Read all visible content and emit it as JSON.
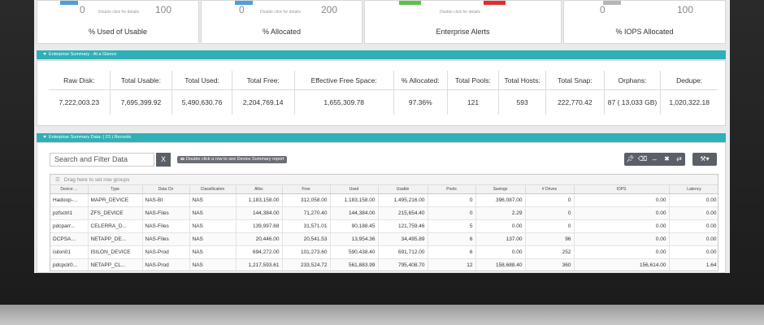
{
  "gauges": [
    {
      "title": "% Used of Usable",
      "min": "0",
      "max": "100",
      "hint": "Double click for details",
      "color": "#4c9fd8"
    },
    {
      "title": "% Allocated",
      "min": "0",
      "max": "200",
      "hint": "Double click for details",
      "color": "#4c9fd8"
    },
    {
      "title": "Enterprise Alerts",
      "hint": "Double click for details",
      "colors": [
        "#5cc24a",
        "#e22d2d"
      ]
    },
    {
      "title": "% IOPS Allocated",
      "min": "0",
      "max": "100",
      "color": "#b5b5b5"
    }
  ],
  "glance_section": {
    "title": "Enterprise Summary - At a Glance",
    "columns": [
      {
        "label": "Raw Disk:",
        "value": "7,222,003.23"
      },
      {
        "label": "Total Usable:",
        "value": "7,695,399.92"
      },
      {
        "label": "Total Used:",
        "value": "5,490,630.76"
      },
      {
        "label": "Total Free:",
        "value": "2,204,769.14"
      },
      {
        "label": "Effective Free Space:",
        "value": "1,655,309.78"
      },
      {
        "label": "% Allocated:",
        "value": "97.36%"
      },
      {
        "label": "Total Pools:",
        "value": "121"
      },
      {
        "label": "Total Hosts:",
        "value": "593"
      },
      {
        "label": "Total Snap:",
        "value": "222,770.42"
      },
      {
        "label": "Orphans:",
        "value": "87 ( 13,033 GB)"
      },
      {
        "label": "Dedupe:",
        "value": "1,020,322.18"
      }
    ]
  },
  "data_section": {
    "title": "Enterprise Summary Data: ( 23 ) Records",
    "search_placeholder": "Search and Filter Data",
    "clear_label": "X",
    "dblclick_hint": "Double click a row to see Device Summary report",
    "group_hint": "Drag here to set row groups",
    "columns": [
      "Device ...",
      "Type",
      "Data Ctr",
      "Classification",
      "Alloc",
      "Free",
      "Used",
      "Usable",
      "Pools",
      "Savings",
      "# Drives",
      "IOPS",
      "Latency"
    ],
    "rows": [
      [
        "Hadoop-...",
        "MAPR_DEVICE",
        "NAS-BI",
        "NAS",
        "1,183,158.00",
        "312,058.00",
        "1,183,158.00",
        "1,495,216.00",
        "0",
        "396,087.00",
        "0",
        "0.00",
        "0.00"
      ],
      [
        "pzfsctrl1",
        "ZFS_DEVICE",
        "NAS-Files",
        "NAS",
        "144,384.00",
        "71,270.40",
        "144,384.00",
        "215,654.40",
        "0",
        "2.29",
        "0",
        "0.00",
        "0.00"
      ],
      [
        "pdcparr...",
        "CELERRA_D...",
        "NAS-Files",
        "NAS",
        "139,997.68",
        "31,571.01",
        "90,188.45",
        "121,759.46",
        "5",
        "0.00",
        "0",
        "0.00",
        "0.00"
      ],
      [
        "DCPSA...",
        "NETAPP_DE...",
        "NAS-Files",
        "NAS",
        "20,446.00",
        "20,541.53",
        "13,954.36",
        "34,495.89",
        "6",
        "137.00",
        "96",
        "0.00",
        "0.00"
      ],
      [
        "isilon01",
        "ISILON_DEVICE",
        "NAS-Prod",
        "NAS",
        "694,272.00",
        "101,273.60",
        "590,438.40",
        "691,712.00",
        "6",
        "0.00",
        "252",
        "0.00",
        "0.00"
      ],
      [
        "pdcpclr0...",
        "NETAPP_CL...",
        "NAS-Prod",
        "NAS",
        "1,217,593.61",
        "233,524.72",
        "561,883.99",
        "795,408.70",
        "12",
        "158,688.40",
        "360",
        "156,614.00",
        "1.64"
      ]
    ]
  },
  "toolbar_icons": [
    "pin-icon",
    "eraser-icon",
    "resize-icon",
    "trash-icon",
    "refresh-icon",
    "wrench-icon"
  ]
}
